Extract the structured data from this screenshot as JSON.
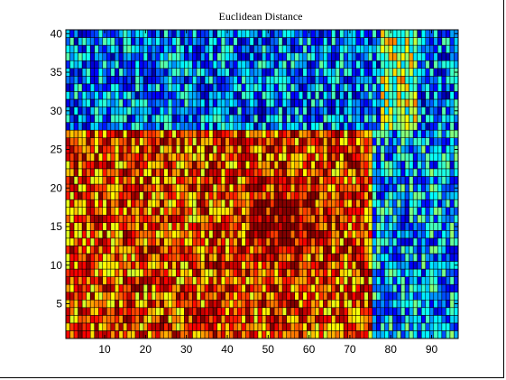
{
  "chart_data": {
    "type": "heatmap",
    "title": "Euclidean Distance",
    "xlabel": "",
    "ylabel": "",
    "colormap": "jet",
    "columns": 96,
    "rows": 40,
    "xlim": [
      0.5,
      96.5
    ],
    "ylim": [
      0.5,
      40.5
    ],
    "xticks": [
      10,
      20,
      30,
      40,
      50,
      60,
      70,
      80,
      90
    ],
    "yticks": [
      5,
      10,
      15,
      20,
      25,
      30,
      35,
      40
    ],
    "grid": false,
    "cell_edge_color": "#000000",
    "value_range": [
      0,
      1
    ],
    "region_levels": {
      "rows_1_to_27": 0.8,
      "rows_28_to_40": 0.25,
      "cols_76_to_96_rows_1_to_27": 0.3,
      "center_peak_col_53_row_16": 1.0
    }
  }
}
